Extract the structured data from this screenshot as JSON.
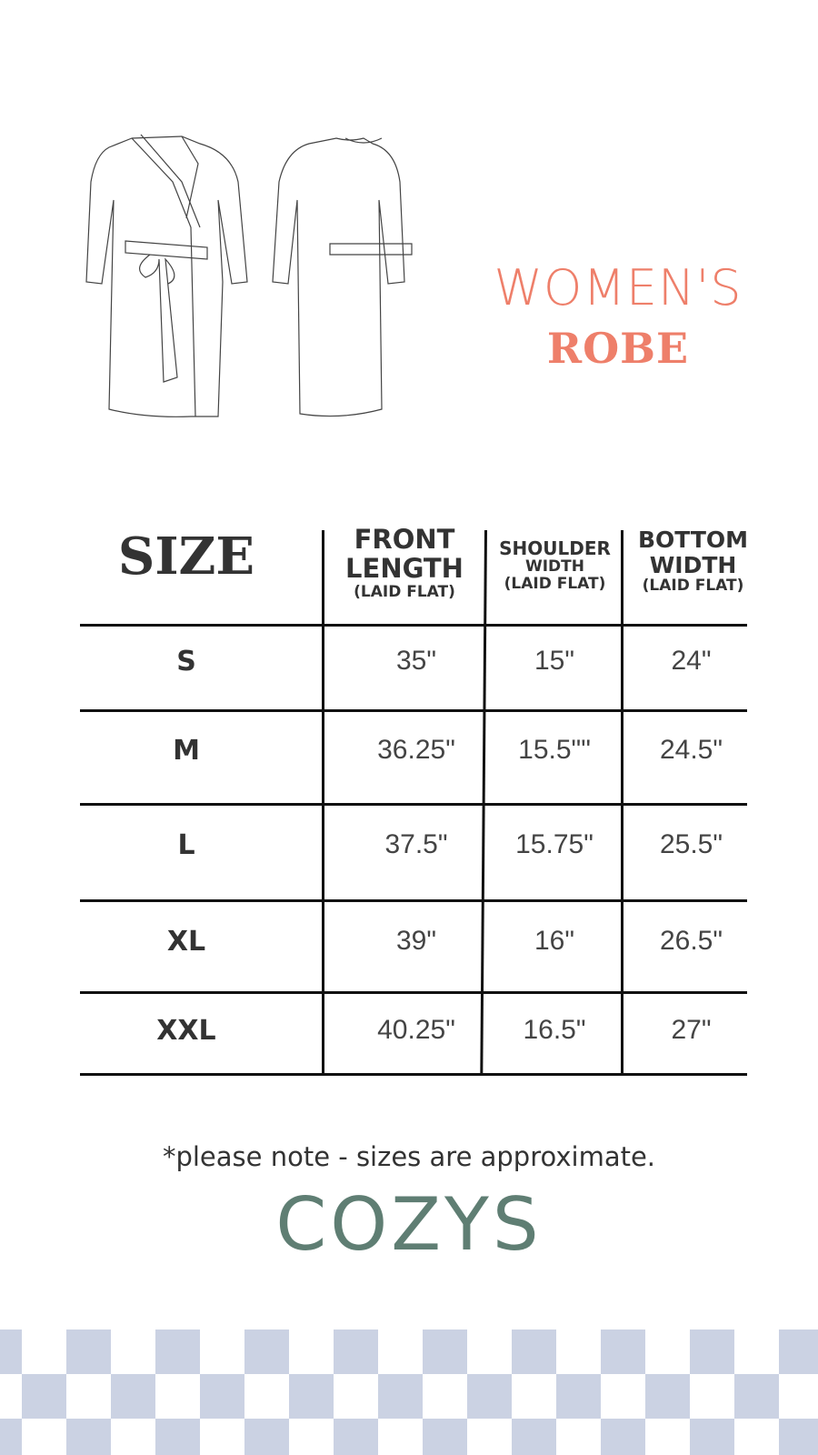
{
  "title": {
    "line1": "WOMEN'S",
    "line2": "ROBE",
    "color": "#ee7f6a"
  },
  "illustrations": [
    {
      "name": "robe-front-icon"
    },
    {
      "name": "robe-back-icon"
    }
  ],
  "table": {
    "headers": [
      {
        "main": "SIZE",
        "sub": ""
      },
      {
        "main": "FRONT LENGTH",
        "sub": "(LAID FLAT)"
      },
      {
        "main": "SHOULDER",
        "mid": "WIDTH",
        "sub": "(LAID FLAT)"
      },
      {
        "main": "BOTTOM WIDTH",
        "sub": "(LAID FLAT)"
      }
    ],
    "rows": [
      {
        "size": "S",
        "front": "35\"",
        "shoulder": "15\"",
        "bottom": "24\""
      },
      {
        "size": "M",
        "front": "36.25\"",
        "shoulder": "15.5\"\"",
        "bottom": "24.5\""
      },
      {
        "size": "L",
        "front": "37.5\"",
        "shoulder": "15.75\"",
        "bottom": "25.5\""
      },
      {
        "size": "XL",
        "front": "39\"",
        "shoulder": "16\"",
        "bottom": "26.5\""
      },
      {
        "size": "XXL",
        "front": "40.25\"",
        "shoulder": "16.5\"",
        "bottom": "27\""
      }
    ]
  },
  "note": "*please note - sizes are approximate.",
  "brand": {
    "name": "COZYS",
    "color": "#5f7e73"
  },
  "pattern": {
    "color": "#cbd2e3"
  }
}
